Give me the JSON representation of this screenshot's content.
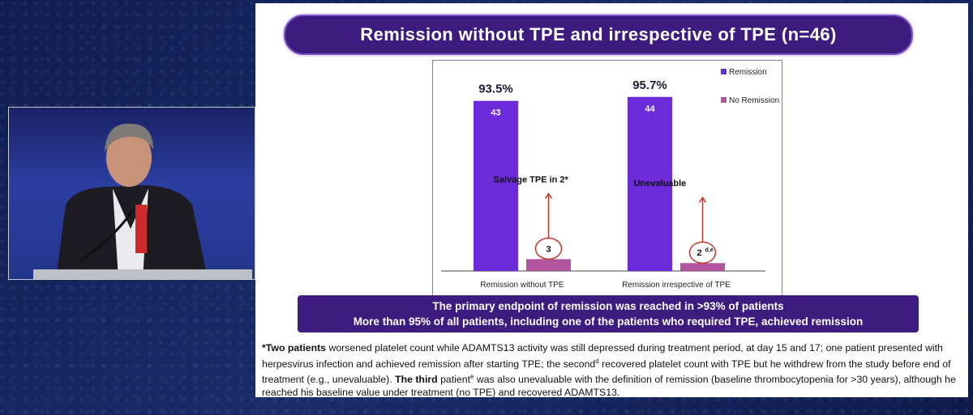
{
  "slide": {
    "title": "Remission without TPE and irrespective of TPE (n=46)",
    "summary": {
      "line1": "The primary endpoint of remission was reached in >93% of patients",
      "line2": "More than 95% of all patients, including one of the patients who required TPE, achieved remission"
    },
    "footnote": {
      "bold1": "*Two patients",
      "text1": " worsened platelet count while ADAMTS13 activity was still depressed during treatment period, at day 15 and 17; one patient presented with herpesvirus infection and achieved remission after starting TPE; the second",
      "sup1": "d",
      "text2": " recovered platelet count with TPE but he withdrew from the study before end of treatment (e.g., unevaluable). ",
      "bold2": "The third",
      "text3": " patient",
      "sup2": "e",
      "text4": " was also unevaluable with the definition of remission (baseline thrombocytopenia for >30 years), although he reached his baseline value under treatment (no TPE) and recovered ADAMTS13."
    }
  },
  "chart_data": {
    "type": "bar",
    "categories": [
      "Remission without TPE",
      "Remission irrespective of TPE"
    ],
    "series": [
      {
        "name": "Remission",
        "values": [
          43,
          44
        ],
        "color": "#6c2bd9"
      },
      {
        "name": "No Remission",
        "values": [
          3,
          2
        ],
        "color": "#b2559f"
      }
    ],
    "percent_labels": [
      "93.5%",
      "95.7%"
    ],
    "remission_labels": [
      "43",
      "44"
    ],
    "no_remission_labels": [
      "3",
      "2"
    ],
    "no_remission_sup": [
      "",
      "d,e"
    ],
    "annotations": [
      "Salvage TPE in 2*",
      "Unevaluable"
    ],
    "ylim": [
      0,
      46
    ],
    "legend": "top-right",
    "annotation_color": "#c0392b"
  },
  "video": {
    "colors": {
      "suit": "#1c1c22",
      "shirt": "#e9e9ee",
      "skin": "#c9937a",
      "hair": "#7d7a78",
      "lectern": "#bfc0c6",
      "badge": "#cc2b2b"
    }
  }
}
